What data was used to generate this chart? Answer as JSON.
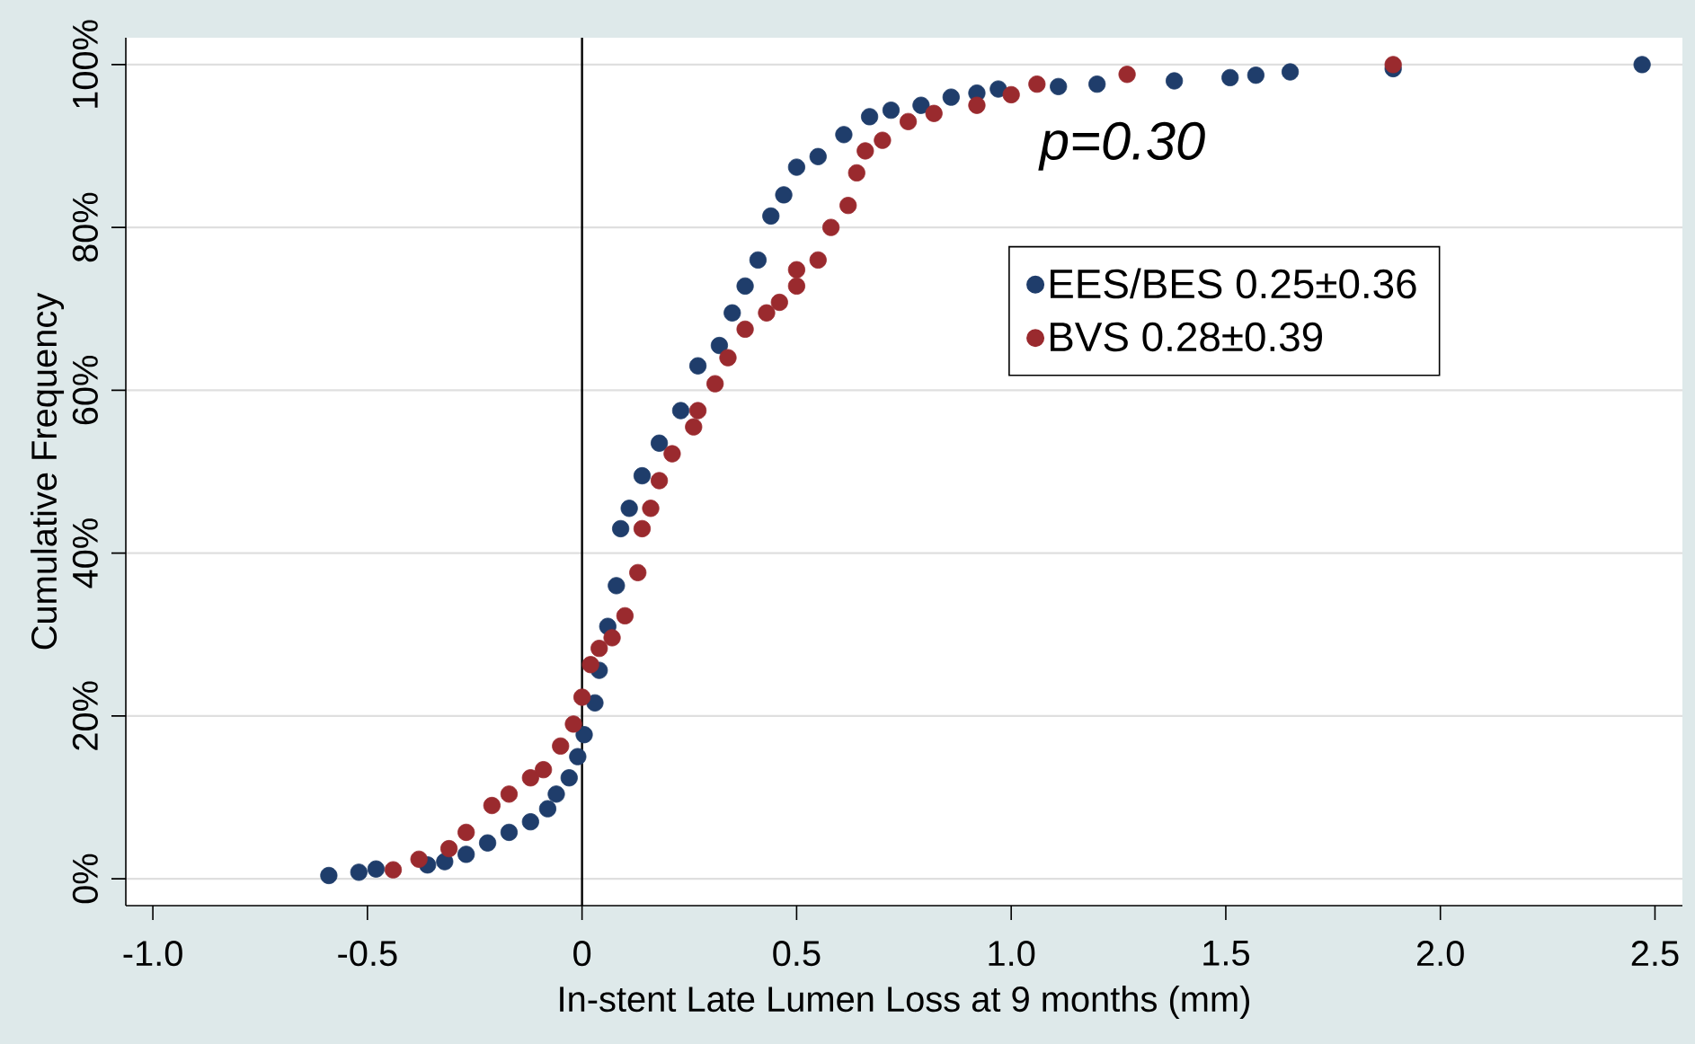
{
  "chart_data": {
    "type": "scatter",
    "xlabel": "In-stent Late Lumen Loss at 9 months (mm)",
    "ylabel": "Cumulative Frequency",
    "annotations": [
      "p=0.30"
    ],
    "xlim": [
      -1.063,
      2.564
    ],
    "ylim": [
      -3.3,
      103.3
    ],
    "xticks": [
      {
        "value": -1,
        "label": "-1.0"
      },
      -0.5,
      0,
      0.5,
      {
        "value": 1,
        "label": "1.0"
      },
      1.5,
      {
        "value": 2,
        "label": "2.0"
      },
      2.5
    ],
    "yticks": [
      {
        "value": 0,
        "label": "0%"
      },
      {
        "value": 20,
        "label": "20%"
      },
      {
        "value": 40,
        "label": "40%"
      },
      {
        "value": 60,
        "label": "60%"
      },
      {
        "value": 80,
        "label": "80%"
      },
      {
        "value": 100,
        "label": "100%"
      }
    ],
    "grid": "y",
    "legend": "top right",
    "marker": "circle",
    "ref_lines": [
      {
        "axis": "x",
        "value": 0,
        "color": "#000000"
      }
    ],
    "series": [
      {
        "name": "EES/BES 0.25±0.36",
        "color": "#1f3d6b",
        "x": [
          -0.59,
          -0.52,
          -0.48,
          -0.36,
          -0.32,
          -0.27,
          -0.22,
          -0.17,
          -0.12,
          -0.08,
          -0.06,
          -0.03,
          -0.01,
          0.005,
          0.03,
          0.04,
          0.06,
          0.08,
          0.09,
          0.11,
          0.14,
          0.18,
          0.23,
          0.27,
          0.32,
          0.35,
          0.38,
          0.41,
          0.44,
          0.47,
          0.5,
          0.55,
          0.61,
          0.67,
          0.72,
          0.79,
          0.86,
          0.92,
          0.97,
          1.11,
          1.2,
          1.38,
          1.51,
          1.57,
          1.65,
          1.89,
          2.47
        ],
        "values": [
          0.4,
          0.8,
          1.2,
          1.7,
          2.1,
          3,
          4.4,
          5.7,
          7,
          8.6,
          10.4,
          12.4,
          15,
          17.7,
          21.6,
          25.6,
          31,
          36,
          43,
          45.5,
          49.5,
          53.5,
          57.5,
          63,
          65.5,
          69.5,
          72.8,
          76,
          81.4,
          84,
          87.4,
          88.7,
          91.4,
          93.6,
          94.4,
          95,
          96,
          96.5,
          97,
          97.3,
          97.6,
          98,
          98.4,
          98.7,
          99.1,
          99.5,
          100
        ]
      },
      {
        "name": "BVS 0.28±0.39",
        "color": "#9a2a2e",
        "x": [
          -0.44,
          -0.38,
          -0.31,
          -0.27,
          -0.21,
          -0.17,
          -0.12,
          -0.09,
          -0.05,
          -0.02,
          0.0,
          0.02,
          0.04,
          0.07,
          0.1,
          0.13,
          0.14,
          0.16,
          0.18,
          0.21,
          0.26,
          0.27,
          0.31,
          0.34,
          0.38,
          0.43,
          0.46,
          0.5,
          0.5,
          0.55,
          0.58,
          0.62,
          0.64,
          0.66,
          0.7,
          0.76,
          0.82,
          0.92,
          1.0,
          1.06,
          1.27,
          1.89
        ],
        "values": [
          1.1,
          2.4,
          3.7,
          5.7,
          9,
          10.4,
          12.4,
          13.4,
          16.3,
          19,
          22.3,
          26.3,
          28.3,
          29.6,
          32.3,
          37.6,
          43,
          45.5,
          48.9,
          52.2,
          55.5,
          57.5,
          60.8,
          64,
          67.5,
          69.5,
          70.8,
          72.8,
          74.8,
          76,
          80,
          82.7,
          86.7,
          89.4,
          90.7,
          93,
          94,
          95,
          96.3,
          97.6,
          98.8,
          100
        ]
      }
    ]
  }
}
